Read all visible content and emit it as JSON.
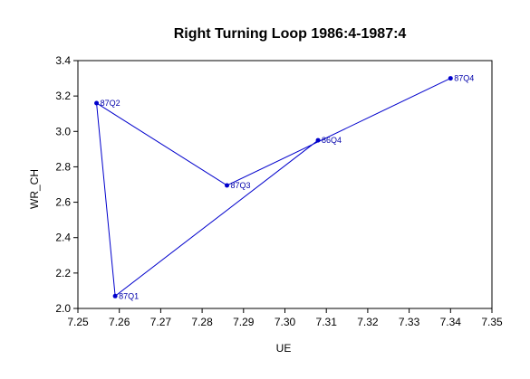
{
  "chart_data": {
    "type": "line",
    "title": "Right Turning Loop 1986:4-1987:4",
    "xlabel": "UE",
    "ylabel": "WR_CH",
    "xlim": [
      7.25,
      7.35
    ],
    "ylim": [
      2.0,
      3.4
    ],
    "xticks": [
      "7.25",
      "7.26",
      "7.27",
      "7.28",
      "7.29",
      "7.30",
      "7.31",
      "7.32",
      "7.33",
      "7.34",
      "7.35"
    ],
    "yticks": [
      "2.0",
      "2.2",
      "2.4",
      "2.6",
      "2.8",
      "3.0",
      "3.2",
      "3.4"
    ],
    "grid": false,
    "series": [
      {
        "color": "#0000cc",
        "points": [
          {
            "label": "86Q4",
            "x": 7.308,
            "y": 2.95
          },
          {
            "label": "87Q1",
            "x": 7.259,
            "y": 2.07
          },
          {
            "label": "87Q2",
            "x": 7.2545,
            "y": 3.16
          },
          {
            "label": "87Q3",
            "x": 7.286,
            "y": 2.695
          },
          {
            "label": "87Q4",
            "x": 7.34,
            "y": 3.3
          }
        ]
      }
    ]
  }
}
